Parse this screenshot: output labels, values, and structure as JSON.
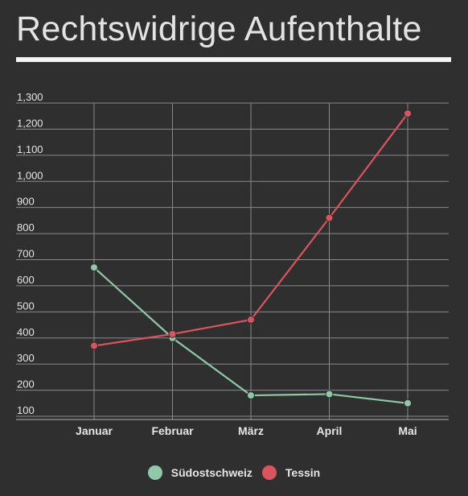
{
  "title": "Rechtswidrige Aufenthalte",
  "colors": {
    "background": "#2f2f2f",
    "grid": "#8a8a8a",
    "text": "#e6e6e6"
  },
  "chart_data": {
    "type": "line",
    "title": "Rechtswidrige Aufenthalte",
    "xlabel": "",
    "ylabel": "",
    "categories": [
      "Januar",
      "Februar",
      "März",
      "April",
      "Mai"
    ],
    "ylim": [
      100,
      1300
    ],
    "yticks": [
      100,
      200,
      300,
      400,
      500,
      600,
      700,
      800,
      900,
      1000,
      1100,
      1200,
      1300
    ],
    "ytick_labels": [
      "100",
      "200",
      "300",
      "400",
      "500",
      "600",
      "700",
      "800",
      "900",
      "1,000",
      "1,100",
      "1,200",
      "1,300"
    ],
    "grid": true,
    "legend_position": "bottom",
    "series": [
      {
        "name": "Südostschweiz",
        "color": "#8fc9a8",
        "values": [
          670,
          400,
          180,
          185,
          150
        ]
      },
      {
        "name": "Tessin",
        "color": "#d9545c",
        "values": [
          370,
          415,
          470,
          860,
          1260
        ]
      }
    ]
  }
}
